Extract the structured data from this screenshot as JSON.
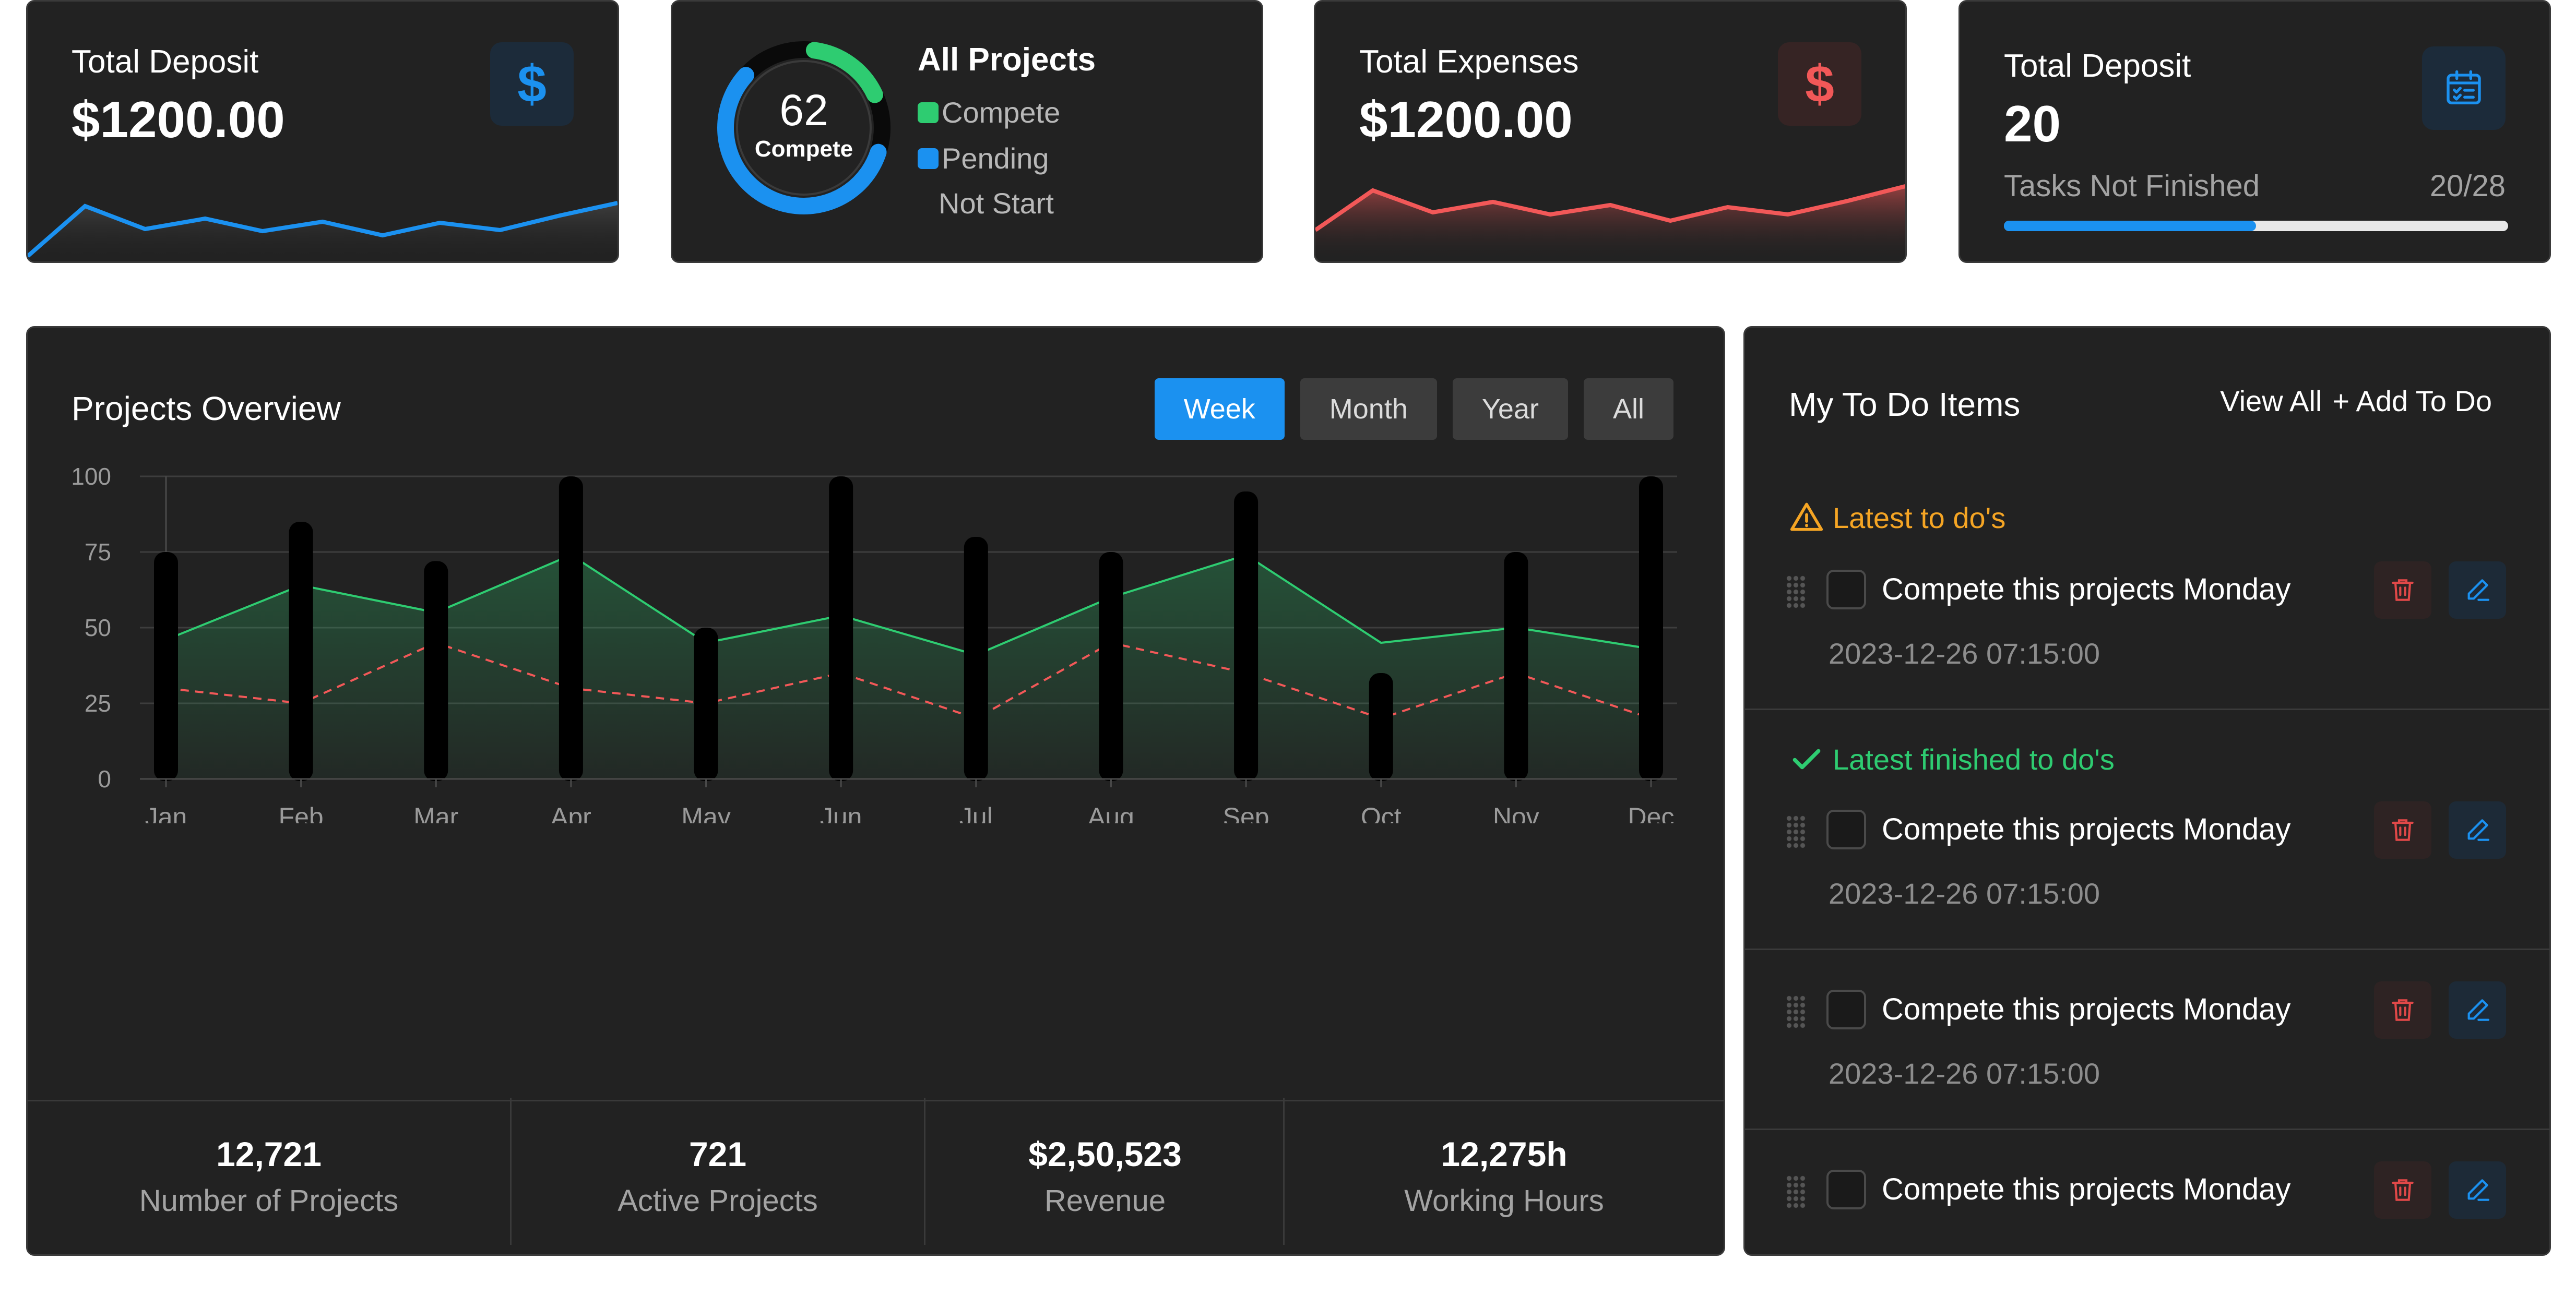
{
  "kpi": {
    "deposit": {
      "title": "Total Deposit",
      "value": "$1200.00",
      "icon": "dollar-icon",
      "icon_glyph": "$",
      "color": "#1b91f0"
    },
    "projects": {
      "title": "All Projects",
      "center_value": "62",
      "center_label": "Compete",
      "legend": [
        {
          "label": "Compete",
          "color": "#2ecc71"
        },
        {
          "label": "Pending",
          "color": "#1b91f0"
        },
        {
          "label": "Not Start",
          "color": ""
        }
      ]
    },
    "expenses": {
      "title": "Total Expenses",
      "value": "$1200.00",
      "icon": "dollar-icon",
      "icon_glyph": "$",
      "color": "#f25858"
    },
    "tasks": {
      "title": "Total Deposit",
      "value": "20",
      "subtitle": "Tasks Not Finished",
      "ratio": "20/28",
      "progress": 0.5,
      "icon": "calendar-check-icon"
    }
  },
  "overview": {
    "title": "Projects Overview",
    "tabs": [
      {
        "label": "Week",
        "active": true
      },
      {
        "label": "Month",
        "active": false
      },
      {
        "label": "Year",
        "active": false
      },
      {
        "label": "All",
        "active": false
      }
    ]
  },
  "chart_data": {
    "type": "bar",
    "categories": [
      "Jan",
      "Feb",
      "Mar",
      "Apr",
      "May",
      "Jun",
      "Jul",
      "Aug",
      "Sep",
      "Oct",
      "Nov",
      "Dec"
    ],
    "y_ticks": [
      "100",
      "75",
      "50",
      "25",
      "0"
    ],
    "ylim": [
      0,
      100
    ],
    "grid": true,
    "series": [
      {
        "type": "bar",
        "color": "#000000",
        "values": [
          75,
          85,
          72,
          100,
          50,
          100,
          80,
          75,
          95,
          35,
          75,
          100
        ]
      },
      {
        "type": "area",
        "color": "#2ecc71",
        "values": [
          46,
          64,
          55,
          74,
          45,
          54,
          41,
          60,
          74,
          45,
          50,
          43
        ]
      },
      {
        "type": "line-dashed",
        "color": "#f25858",
        "values": [
          30,
          25,
          45,
          30,
          25,
          35,
          20,
          45,
          35,
          20,
          35,
          20
        ]
      }
    ]
  },
  "stats": [
    {
      "value": "12,721",
      "label": "Number of Projects"
    },
    {
      "value": "721",
      "label": "Active Projects"
    },
    {
      "value": "$2,50,523",
      "label": "Revenue"
    },
    {
      "value": "12,275h",
      "label": "Working Hours"
    }
  ],
  "todo": {
    "title": "My To Do Items",
    "view_all": "View All",
    "add": "+ Add To Do",
    "latest_label": "Latest to do's",
    "finished_label": "Latest finished to do's",
    "items": [
      {
        "text": "Compete this projects Monday",
        "time": "2023-12-26 07:15:00"
      },
      {
        "text": "Compete this projects Monday",
        "time": "2023-12-26 07:15:00"
      },
      {
        "text": "Compete this projects Monday",
        "time": "2023-12-26 07:15:00"
      },
      {
        "text": "Compete this projects Monday",
        "time": ""
      }
    ]
  }
}
